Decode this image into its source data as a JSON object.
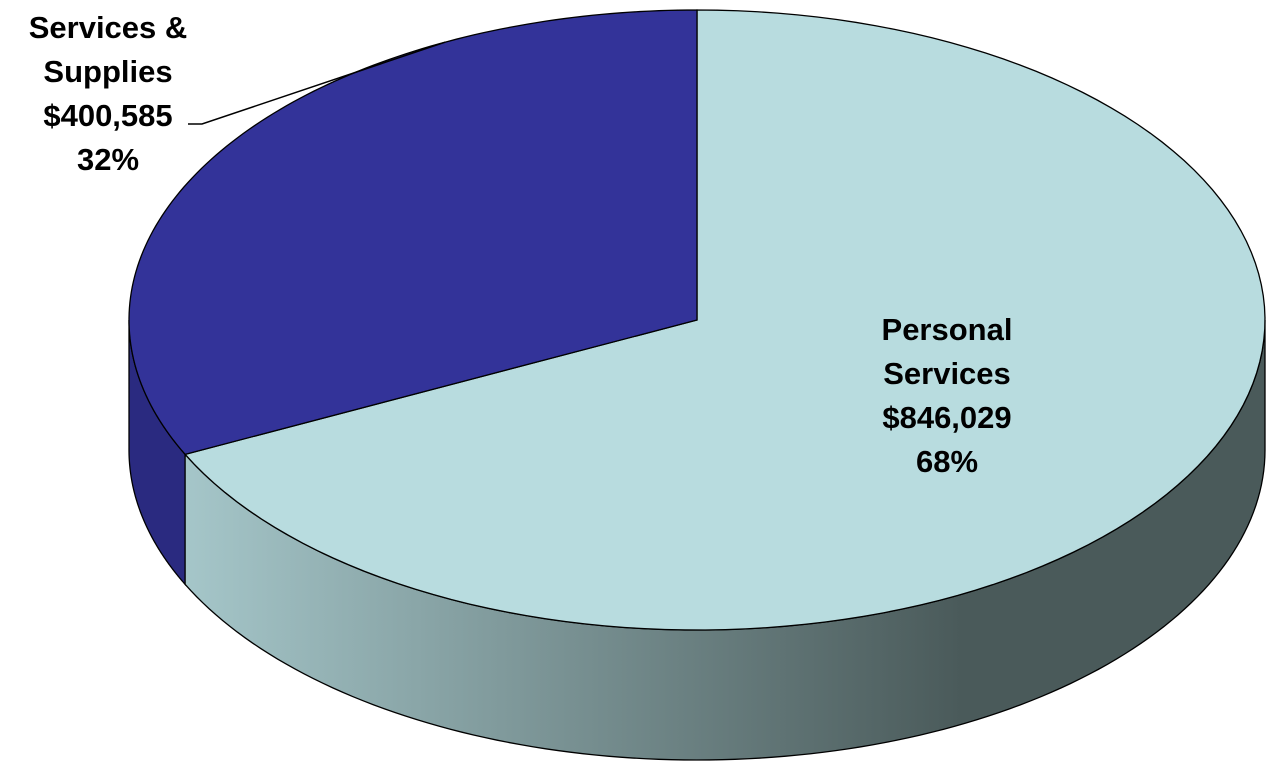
{
  "chart_data": {
    "type": "pie",
    "style": "3d",
    "title": "",
    "slices": [
      {
        "label_lines": [
          "Personal",
          "Services"
        ],
        "value": 846029,
        "value_text": "$846,029",
        "percent_text": "68%",
        "color": "#B8DCDF"
      },
      {
        "label_lines": [
          "Services &",
          "Supplies"
        ],
        "value": 400585,
        "value_text": "$400,585",
        "percent_text": "32%",
        "color": "#333399"
      }
    ],
    "side_colors": {
      "light_slice_gradient": [
        "#A5C6C9",
        "#4A5A5A"
      ],
      "dark_slice": "#2A2A80"
    },
    "outline_color": "#000000",
    "leader_line": true
  }
}
